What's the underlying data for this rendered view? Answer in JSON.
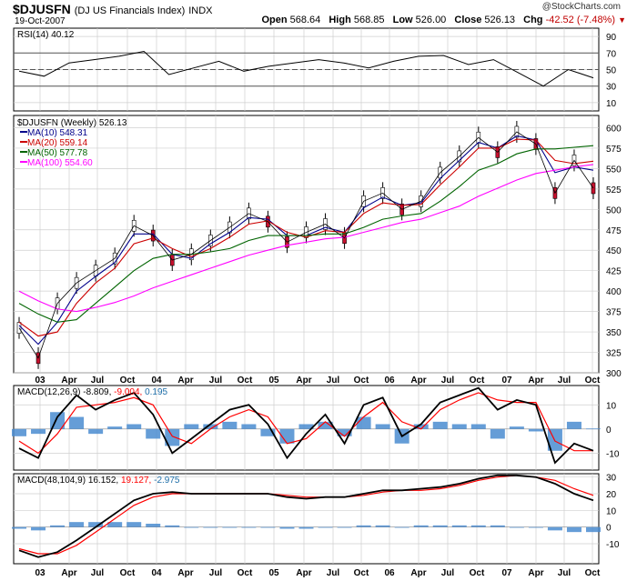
{
  "header": {
    "symbol": "$DJUSFN",
    "name": "(DJ US Financials Index)",
    "exchange": "INDX",
    "date": "19-Oct-2007",
    "brand": "@StockCharts.com",
    "open_label": "Open",
    "open": "568.64",
    "high_label": "High",
    "high": "568.85",
    "low_label": "Low",
    "low": "526.00",
    "close_label": "Close",
    "close": "526.13",
    "chg_label": "Chg",
    "chg": "-42.52 (-7.48%)",
    "down_icon": "down-triangle-icon"
  },
  "chart_data": [
    {
      "type": "line",
      "title": "RSI(14) 40.12",
      "label": "RSI(14)",
      "last": "40.12",
      "ylim": [
        0,
        100
      ],
      "yticks": [
        10,
        30,
        50,
        70,
        90
      ],
      "guides": [
        30,
        50,
        70
      ],
      "x": [
        "Jan03",
        "Mar03",
        "Jun03",
        "Sep03",
        "Dec03",
        "Mar04",
        "Jun04",
        "Sep04",
        "Dec04",
        "Mar05",
        "Jun05",
        "Sep05",
        "Dec05",
        "Mar06",
        "Jun06",
        "Sep06",
        "Dec06",
        "Jan07",
        "Mar07",
        "May07",
        "Jul07",
        "Aug07",
        "Sep07",
        "Oct07"
      ],
      "values": [
        48,
        42,
        58,
        62,
        66,
        72,
        44,
        52,
        60,
        48,
        54,
        58,
        62,
        58,
        52,
        60,
        66,
        67,
        56,
        62,
        46,
        30,
        50,
        40
      ]
    },
    {
      "type": "line",
      "title": "$DJUSFN (Weekly) 526.13",
      "ylim": [
        300,
        615
      ],
      "yticks": [
        300,
        325,
        350,
        375,
        400,
        425,
        450,
        475,
        500,
        525,
        550,
        575,
        600
      ],
      "xticks": [
        "03",
        "Apr",
        "Jul",
        "Oct",
        "04",
        "Apr",
        "Jul",
        "Oct",
        "05",
        "Apr",
        "Jul",
        "Oct",
        "06",
        "Apr",
        "Jul",
        "Oct",
        "07",
        "Apr",
        "Jul",
        "Oct"
      ],
      "categories": [
        "Jan03",
        "Mar03",
        "May03",
        "Jul03",
        "Sep03",
        "Nov03",
        "Jan04",
        "Mar04",
        "May04",
        "Jul04",
        "Sep04",
        "Nov04",
        "Jan05",
        "Mar05",
        "May05",
        "Jul05",
        "Sep05",
        "Nov05",
        "Jan06",
        "Mar06",
        "May06",
        "Jul06",
        "Sep06",
        "Nov06",
        "Jan07",
        "Mar07",
        "May07",
        "Jul07",
        "Aug07",
        "Sep07",
        "Oct07"
      ],
      "series": [
        {
          "name": "Price",
          "label": "$DJUSFN (Weekly) 526.13",
          "color": "#000000",
          "values": [
            355,
            318,
            385,
            410,
            425,
            440,
            480,
            468,
            438,
            445,
            462,
            478,
            495,
            485,
            460,
            472,
            482,
            465,
            510,
            520,
            500,
            510,
            545,
            565,
            588,
            570,
            595,
            580,
            520,
            560,
            526
          ]
        },
        {
          "name": "MA(10)",
          "label": "MA(10) 548.31",
          "color": "#00008b",
          "values": [
            358,
            335,
            362,
            400,
            418,
            435,
            470,
            470,
            445,
            440,
            458,
            472,
            490,
            488,
            468,
            468,
            478,
            472,
            502,
            515,
            505,
            508,
            538,
            560,
            582,
            575,
            590,
            585,
            545,
            552,
            548
          ]
        },
        {
          "name": "MA(20)",
          "label": "MA(20) 559.14",
          "color": "#cc0000",
          "values": [
            362,
            345,
            350,
            385,
            410,
            428,
            458,
            465,
            452,
            442,
            452,
            466,
            482,
            486,
            472,
            466,
            474,
            472,
            495,
            508,
            505,
            506,
            530,
            552,
            575,
            575,
            586,
            585,
            560,
            556,
            559
          ]
        },
        {
          "name": "MA(50)",
          "label": "MA(50) 577.78",
          "color": "#006400",
          "values": [
            385,
            372,
            362,
            365,
            385,
            405,
            425,
            440,
            445,
            445,
            448,
            452,
            462,
            468,
            468,
            468,
            470,
            470,
            478,
            488,
            492,
            495,
            510,
            528,
            548,
            556,
            568,
            574,
            574,
            576,
            578
          ]
        },
        {
          "name": "MA(100)",
          "label": "MA(100) 554.60",
          "color": "#ff00ff",
          "values": [
            400,
            388,
            378,
            375,
            380,
            386,
            394,
            404,
            412,
            420,
            428,
            436,
            444,
            450,
            456,
            460,
            464,
            466,
            472,
            478,
            484,
            488,
            496,
            504,
            516,
            526,
            536,
            544,
            548,
            552,
            555
          ]
        }
      ]
    },
    {
      "type": "line",
      "title": "MACD(12,26,9) -8.809, -9.004, 0.195",
      "label": "MACD(12,26,9)",
      "macd": "-8.809",
      "signal": "-9.004",
      "hist": "0.195",
      "ylim": [
        -17,
        18
      ],
      "yticks": [
        -10,
        0,
        10
      ],
      "series": [
        {
          "name": "MACD",
          "color": "#000000",
          "values": [
            -8,
            -12,
            5,
            14,
            8,
            12,
            15,
            6,
            -10,
            -4,
            2,
            8,
            10,
            2,
            -12,
            -2,
            6,
            -6,
            10,
            13,
            -3,
            2,
            11,
            14,
            17,
            8,
            12,
            10,
            -14,
            -6,
            -9
          ]
        },
        {
          "name": "Signal",
          "color": "#ff0000",
          "values": [
            -5,
            -10,
            -2,
            9,
            10,
            11,
            13,
            10,
            -3,
            -6,
            0,
            5,
            8,
            5,
            -6,
            -4,
            3,
            -3,
            5,
            11,
            3,
            0,
            8,
            12,
            15,
            12,
            11,
            11,
            -5,
            -9,
            -9
          ]
        },
        {
          "name": "Histogram",
          "color": "#4a8cd0",
          "values": [
            -3,
            -2,
            7,
            5,
            -2,
            1,
            2,
            -4,
            -7,
            2,
            2,
            3,
            2,
            -3,
            -6,
            2,
            3,
            -3,
            5,
            2,
            -6,
            2,
            3,
            2,
            2,
            -4,
            1,
            -1,
            -9,
            3,
            0.2
          ]
        }
      ]
    },
    {
      "type": "line",
      "title": "MACD(48,104,9) 16.152, 19.127, -2.975",
      "label": "MACD(48,104,9)",
      "macd": "16.152",
      "signal": "19.127",
      "hist": "-2.975",
      "ylim": [
        -22,
        32
      ],
      "yticks": [
        -10,
        0,
        10,
        20,
        30
      ],
      "series": [
        {
          "name": "MACD",
          "color": "#000000",
          "values": [
            -14,
            -18,
            -15,
            -8,
            0,
            8,
            16,
            20,
            21,
            20,
            20,
            20,
            20,
            20,
            18,
            17,
            18,
            18,
            20,
            22,
            22,
            23,
            24,
            26,
            29,
            31,
            31,
            30,
            26,
            20,
            16
          ]
        },
        {
          "name": "Signal",
          "color": "#ff0000",
          "values": [
            -13,
            -16,
            -16,
            -11,
            -3,
            5,
            13,
            18,
            20,
            20,
            20,
            20,
            20,
            20,
            19,
            18,
            18,
            18,
            19,
            21,
            22,
            22,
            23,
            25,
            28,
            30,
            31,
            30,
            28,
            23,
            19
          ]
        },
        {
          "name": "Histogram",
          "color": "#4a8cd0",
          "values": [
            -1,
            -2,
            1,
            3,
            3,
            3,
            3,
            2,
            1,
            0,
            0,
            0,
            0,
            0,
            -1,
            -1,
            0,
            0,
            1,
            1,
            0,
            1,
            1,
            1,
            1,
            1,
            0,
            0,
            -2,
            -3,
            -3
          ]
        }
      ]
    }
  ]
}
